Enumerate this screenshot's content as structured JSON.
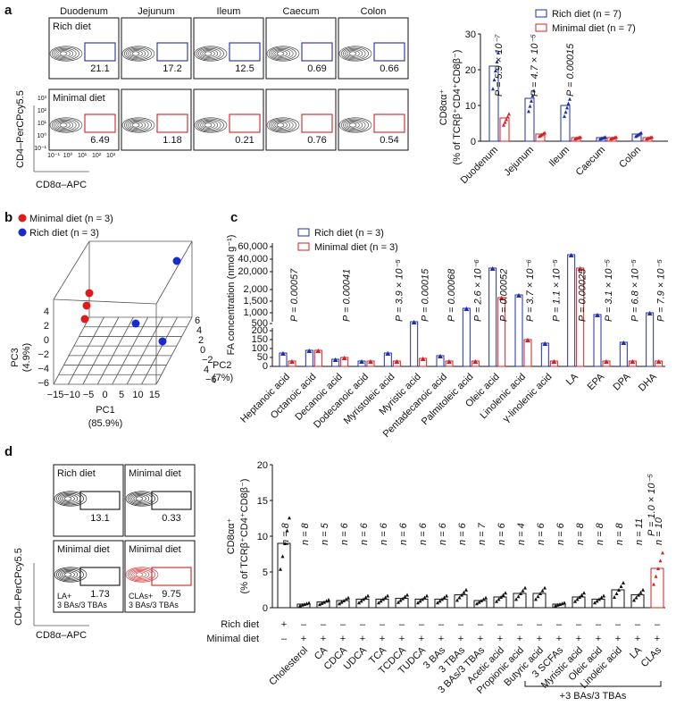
{
  "panels": {
    "a": {
      "letter": "a",
      "tissues": [
        "Duodenum",
        "Jejunum",
        "Ileum",
        "Caecum",
        "Colon"
      ],
      "rows": [
        {
          "label": "Rich diet",
          "values": [
            "21.1",
            "17.2",
            "12.5",
            "0.69",
            "0.66"
          ],
          "color": "#1f2fa8"
        },
        {
          "label": "Minimal diet",
          "values": [
            "6.49",
            "1.18",
            "0.21",
            "0.76",
            "0.54"
          ],
          "color": "#d42020"
        }
      ],
      "ylabel": "CD4–PerCPcy5.5",
      "xlabel": "CD8α–APC",
      "axis_ticks": [
        "10⁻¹",
        "10⁰",
        "10¹",
        "10²",
        "10³"
      ],
      "y_ticks": [
        "10³",
        "10²",
        "10¹",
        "10⁰",
        "10⁻¹"
      ],
      "legend": [
        "Rich diet (n = 7)",
        "Minimal diet (n = 7)"
      ],
      "bar_ylabel_1": "CD8αα⁺",
      "bar_ylabel_2": "(% of TCRβ⁺CD4⁺CD8β⁻)",
      "bar_yticks": [
        "0",
        "10",
        "20",
        "30"
      ],
      "pvalues": [
        "P = 5.9 × 10⁻⁷",
        "P = 4.7 × 10⁻⁵",
        "P = 0.00015"
      ]
    },
    "b": {
      "letter": "b",
      "legend": [
        "Minimal diet (n = 3)",
        "Rich diet (n = 3)"
      ],
      "pc1": "PC1",
      "pc1_pct": "(85.9%)",
      "pc2": "PC2",
      "pc2_pct": "(7%)",
      "pc3": "PC3",
      "pc3_pct": "(4.9%)",
      "pc1_ticks": [
        "−15",
        "−10",
        "−5",
        "0",
        "5",
        "10",
        "15"
      ],
      "pc2_ticks": [
        "6",
        "4",
        "2",
        "0",
        "−2",
        "4",
        "−6"
      ],
      "pc3_ticks": [
        "4",
        "2",
        "0",
        "−2",
        "−4",
        "−6"
      ]
    },
    "c": {
      "letter": "c",
      "legend": [
        "Rich diet (n = 3)",
        "Minimal diet (n = 3)"
      ],
      "ylabel": "FA concentration (nmol g⁻¹)",
      "yticks_top": [
        "60,000",
        "40,000",
        "20,000",
        "2,000",
        "1,500",
        "1,000",
        "500"
      ],
      "yticks_bottom": [
        "200",
        "150",
        "100",
        "50",
        "0"
      ],
      "categories": [
        "Heptanoic acid",
        "Octanoic acid",
        "Decanoic acid",
        "Dodecanoic acid",
        "Myristoleic acid",
        "Myristic acid",
        "Pentadecanoic acid",
        "Palmitoleic acid",
        "Oleic acid",
        "Linolenic acid",
        "γ-linolenic acid",
        "LA",
        "EPA",
        "DPA",
        "DHA"
      ],
      "pvalues": [
        "P = 0.00057",
        "",
        "P = 0.00041",
        "",
        "P = 3.9 × 10⁻⁵",
        "P = 0.00015",
        "P = 0.00068",
        "P = 2.6 × 10⁻⁶",
        "P = 0.00052",
        "P = 3.7 × 10⁻⁶",
        "P = 1.1 × 10⁻⁵",
        "P = 0.00025",
        "P = 3.1 × 10⁻⁵",
        "P = 6.8 × 10⁻⁵",
        "P = 7.9 × 10⁻⁵"
      ]
    },
    "d": {
      "letter": "d",
      "flow": [
        {
          "label": "Rich diet",
          "value": "13.1"
        },
        {
          "label": "Minimal diet",
          "value": "0.33"
        },
        {
          "label": "Minimal diet",
          "value": "1.73",
          "sub1": "LA+",
          "sub2": "3 BAs/3 TBAs"
        },
        {
          "label": "Minimal diet",
          "value": "9.75",
          "sub1": "CLAs+",
          "sub2": "3 BAs/3 TBAs"
        }
      ],
      "ylabel": "CD4–PerCPcy5.5",
      "xlabel": "CD8α–APC",
      "bar_ylabel_1": "CD8αα⁺",
      "bar_ylabel_2": "(% of TCRβ⁺CD4⁺CD8β⁻)",
      "bar_yticks": [
        "0",
        "5",
        "10",
        "15",
        "20"
      ],
      "n_labels": [
        "n = 8",
        "n = 8",
        "n = 5",
        "n = 6",
        "n = 6",
        "n = 6",
        "n = 6",
        "n = 6",
        "n = 6",
        "n = 6",
        "n = 7",
        "n = 6",
        "n = 4",
        "n = 6",
        "n = 6",
        "n = 8",
        "n = 8",
        "n = 8",
        "n = 11",
        "n = 10"
      ],
      "rich_row_label": "Rich diet",
      "minimal_row_label": "Minimal diet",
      "rich_signs": [
        "+",
        "–",
        "–",
        "–",
        "–",
        "–",
        "–",
        "–",
        "–",
        "–",
        "–",
        "–",
        "–",
        "–",
        "–",
        "–",
        "–",
        "–",
        "–",
        "–"
      ],
      "minimal_signs": [
        "–",
        "+",
        "+",
        "+",
        "+",
        "+",
        "+",
        "+",
        "+",
        "+",
        "+",
        "+",
        "+",
        "+",
        "+",
        "+",
        "+",
        "+",
        "+",
        "+"
      ],
      "categories": [
        "Cholesterol",
        "CA",
        "CDCA",
        "UDCA",
        "TCA",
        "TCDCA",
        "TUDCA",
        "3 BAs",
        "3 TBAs",
        "3 BAs/3 TBAs",
        "Acetic acid",
        "Propionic acid",
        "Butyric acid",
        "3 SCFAs",
        "Myristic acid",
        "Oleic acid",
        "Linoleic acid",
        "LA",
        "CLAs"
      ],
      "bracket_label": "+3 BAs/3 TBAs",
      "pvalue": "P = 1.0 × 10⁻⁵"
    }
  },
  "chart_data": [
    {
      "type": "bar",
      "categories": [
        "Duodenum",
        "Jejunum",
        "Ileum",
        "Caecum",
        "Colon"
      ],
      "series": [
        {
          "name": "Rich diet (n = 7)",
          "values": [
            21,
            12,
            10,
            1,
            2
          ]
        },
        {
          "name": "Minimal diet (n = 7)",
          "values": [
            6.5,
            2,
            1,
            1,
            1
          ]
        }
      ],
      "ylim": [
        0,
        30
      ]
    },
    {
      "type": "bar",
      "categories": [
        "Rich",
        "Cholesterol",
        "CA",
        "CDCA",
        "UDCA",
        "TCA",
        "TCDCA",
        "TUDCA",
        "3 BAs",
        "3 TBAs",
        "3 BAs/3 TBAs",
        "Acetic acid",
        "Propionic acid",
        "Butyric acid",
        "3 SCFAs",
        "Myristic acid",
        "Oleic acid",
        "Linoleic acid",
        "LA",
        "CLAs"
      ],
      "values": [
        9,
        0.5,
        0.8,
        1,
        1.2,
        1.2,
        1.3,
        1.2,
        1.2,
        1.8,
        1,
        1.5,
        2,
        2,
        0.5,
        1.5,
        1.2,
        2.5,
        1.8,
        5.5
      ],
      "ylim": [
        0,
        20
      ]
    }
  ]
}
